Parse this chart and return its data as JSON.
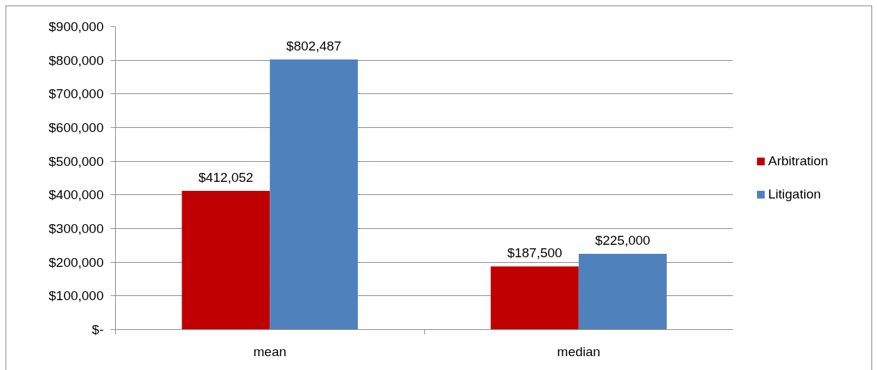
{
  "chart_data": {
    "type": "bar",
    "categories": [
      "mean",
      "median"
    ],
    "series": [
      {
        "name": "Arbitration",
        "color": "#c00000",
        "values": [
          412052,
          187500
        ],
        "value_labels": [
          "$412,052",
          "$187,500"
        ]
      },
      {
        "name": "Litigation",
        "color": "#4f81bd",
        "values": [
          802487,
          225000
        ],
        "value_labels": [
          "$802,487",
          "$225,000"
        ]
      }
    ],
    "ylim": [
      0,
      900000
    ],
    "yticks": [
      {
        "value": 0,
        "label": "$-"
      },
      {
        "value": 100000,
        "label": "$100,000"
      },
      {
        "value": 200000,
        "label": "$200,000"
      },
      {
        "value": 300000,
        "label": "$300,000"
      },
      {
        "value": 400000,
        "label": "$400,000"
      },
      {
        "value": 500000,
        "label": "$500,000"
      },
      {
        "value": 600000,
        "label": "$600,000"
      },
      {
        "value": 700000,
        "label": "$700,000"
      },
      {
        "value": 800000,
        "label": "$800,000"
      },
      {
        "value": 900000,
        "label": "$900,000"
      }
    ],
    "grid": "y",
    "legend": "right"
  }
}
